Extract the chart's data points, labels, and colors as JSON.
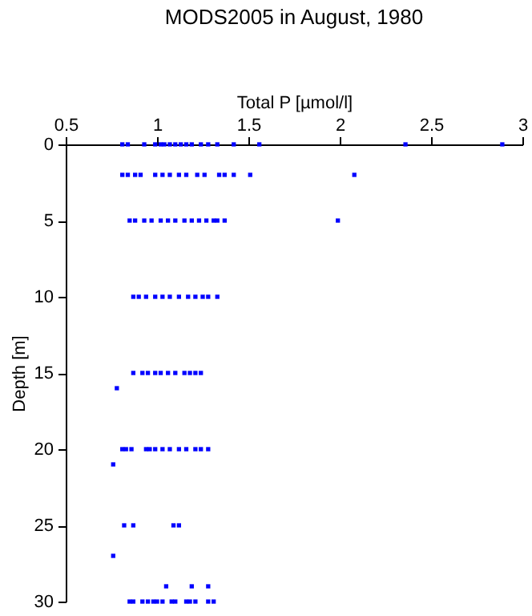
{
  "chart_data": {
    "type": "scatter",
    "title": "MODS2005 in August, 1980",
    "xlabel": "Total P [µmol/l]",
    "ylabel": "Depth [m]",
    "xlim": [
      0.5,
      3
    ],
    "xticks": [
      0.5,
      1,
      1.5,
      2,
      2.5,
      3
    ],
    "ylim": [
      30,
      0
    ],
    "yticks": [
      0,
      5,
      10,
      15,
      20,
      25,
      30
    ],
    "marker": "square",
    "grid": false,
    "series": [
      {
        "color": "#0000ff",
        "x": [
          0.81,
          0.84,
          0.93,
          0.99,
          1.02,
          1.04,
          1.07,
          1.1,
          1.13,
          1.16,
          1.19,
          1.24,
          1.28,
          1.33,
          1.42,
          1.56,
          2.36,
          2.89,
          0.81,
          0.84,
          0.88,
          0.91,
          0.99,
          1.03,
          1.07,
          1.12,
          1.16,
          1.22,
          1.26,
          1.34,
          1.37,
          1.42,
          1.51,
          2.08,
          0.85,
          0.88,
          0.93,
          0.97,
          1.02,
          1.06,
          1.1,
          1.15,
          1.19,
          1.23,
          1.27,
          1.31,
          1.33,
          1.37,
          1.99,
          0.87,
          0.9,
          0.94,
          0.99,
          1.03,
          1.07,
          1.12,
          1.17,
          1.21,
          1.25,
          1.28,
          1.33,
          0.87,
          0.92,
          0.95,
          0.99,
          1.02,
          1.06,
          1.1,
          1.15,
          1.18,
          1.21,
          1.24,
          0.78,
          0.81,
          0.83,
          0.86,
          0.94,
          0.96,
          0.99,
          1.03,
          1.07,
          1.12,
          1.16,
          1.21,
          1.24,
          1.28,
          0.76,
          0.82,
          0.87,
          1.09,
          1.12,
          0.76,
          1.05,
          1.19,
          1.28,
          0.85,
          0.87,
          0.92,
          0.95,
          0.98,
          1.0,
          1.03,
          1.08,
          1.1,
          1.16,
          1.18,
          1.21,
          1.28,
          1.31
        ],
        "values": [
          0,
          0,
          0,
          0,
          0,
          0,
          0,
          0,
          0,
          0,
          0,
          0,
          0,
          0,
          0,
          0,
          0,
          0,
          2,
          2,
          2,
          2,
          2,
          2,
          2,
          2,
          2,
          2,
          2,
          2,
          2,
          2,
          2,
          2,
          5,
          5,
          5,
          5,
          5,
          5,
          5,
          5,
          5,
          5,
          5,
          5,
          5,
          5,
          5,
          10,
          10,
          10,
          10,
          10,
          10,
          10,
          10,
          10,
          10,
          10,
          10,
          15,
          15,
          15,
          15,
          15,
          15,
          15,
          15,
          15,
          15,
          15,
          16,
          20,
          20,
          20,
          20,
          20,
          20,
          20,
          20,
          20,
          20,
          20,
          20,
          20,
          21,
          25,
          25,
          25,
          25,
          27,
          29,
          29,
          29,
          30,
          30,
          30,
          30,
          30,
          30,
          30,
          30,
          30,
          30,
          30,
          30,
          30,
          30
        ]
      }
    ]
  }
}
